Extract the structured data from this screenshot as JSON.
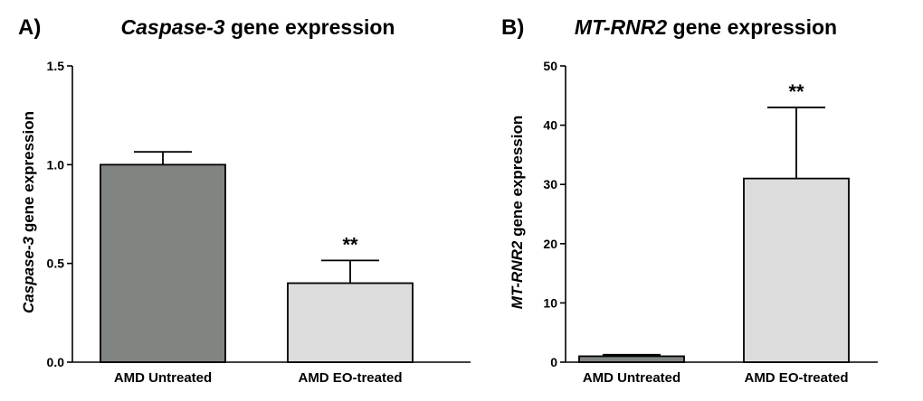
{
  "chart_data": [
    {
      "type": "bar",
      "panel": "A)",
      "title_italic": "Caspase-3",
      "title_rest": " gene expression",
      "ylabel_italic": "Caspase-3",
      "ylabel_rest": " gene expression",
      "categories": [
        "AMD Untreated",
        "AMD EO-treated"
      ],
      "values": [
        1.0,
        0.4
      ],
      "errors": [
        0.065,
        0.115
      ],
      "bar_colors": [
        "#808582",
        "#dcdcdc"
      ],
      "significance": [
        "",
        "**"
      ],
      "ylim": [
        0,
        1.5
      ],
      "yticks": [
        0,
        0.5,
        1.0,
        1.5
      ],
      "ytick_labels": [
        "0.0",
        "0.5",
        "1.0",
        "1.5"
      ]
    },
    {
      "type": "bar",
      "panel": "B)",
      "title_italic": "MT-RNR2",
      "title_rest": " gene expression",
      "ylabel_italic": "MT-RNR2",
      "ylabel_rest": " gene expression",
      "categories": [
        "AMD Untreated",
        "AMD EO-treated"
      ],
      "values": [
        1.0,
        31.0
      ],
      "errors": [
        0.25,
        12.0
      ],
      "bar_colors": [
        "#808582",
        "#dcdcdc"
      ],
      "significance": [
        "",
        "**"
      ],
      "ylim": [
        0,
        50
      ],
      "yticks": [
        0,
        10,
        20,
        30,
        40,
        50
      ],
      "ytick_labels": [
        "0",
        "10",
        "20",
        "30",
        "40",
        "50"
      ]
    }
  ]
}
